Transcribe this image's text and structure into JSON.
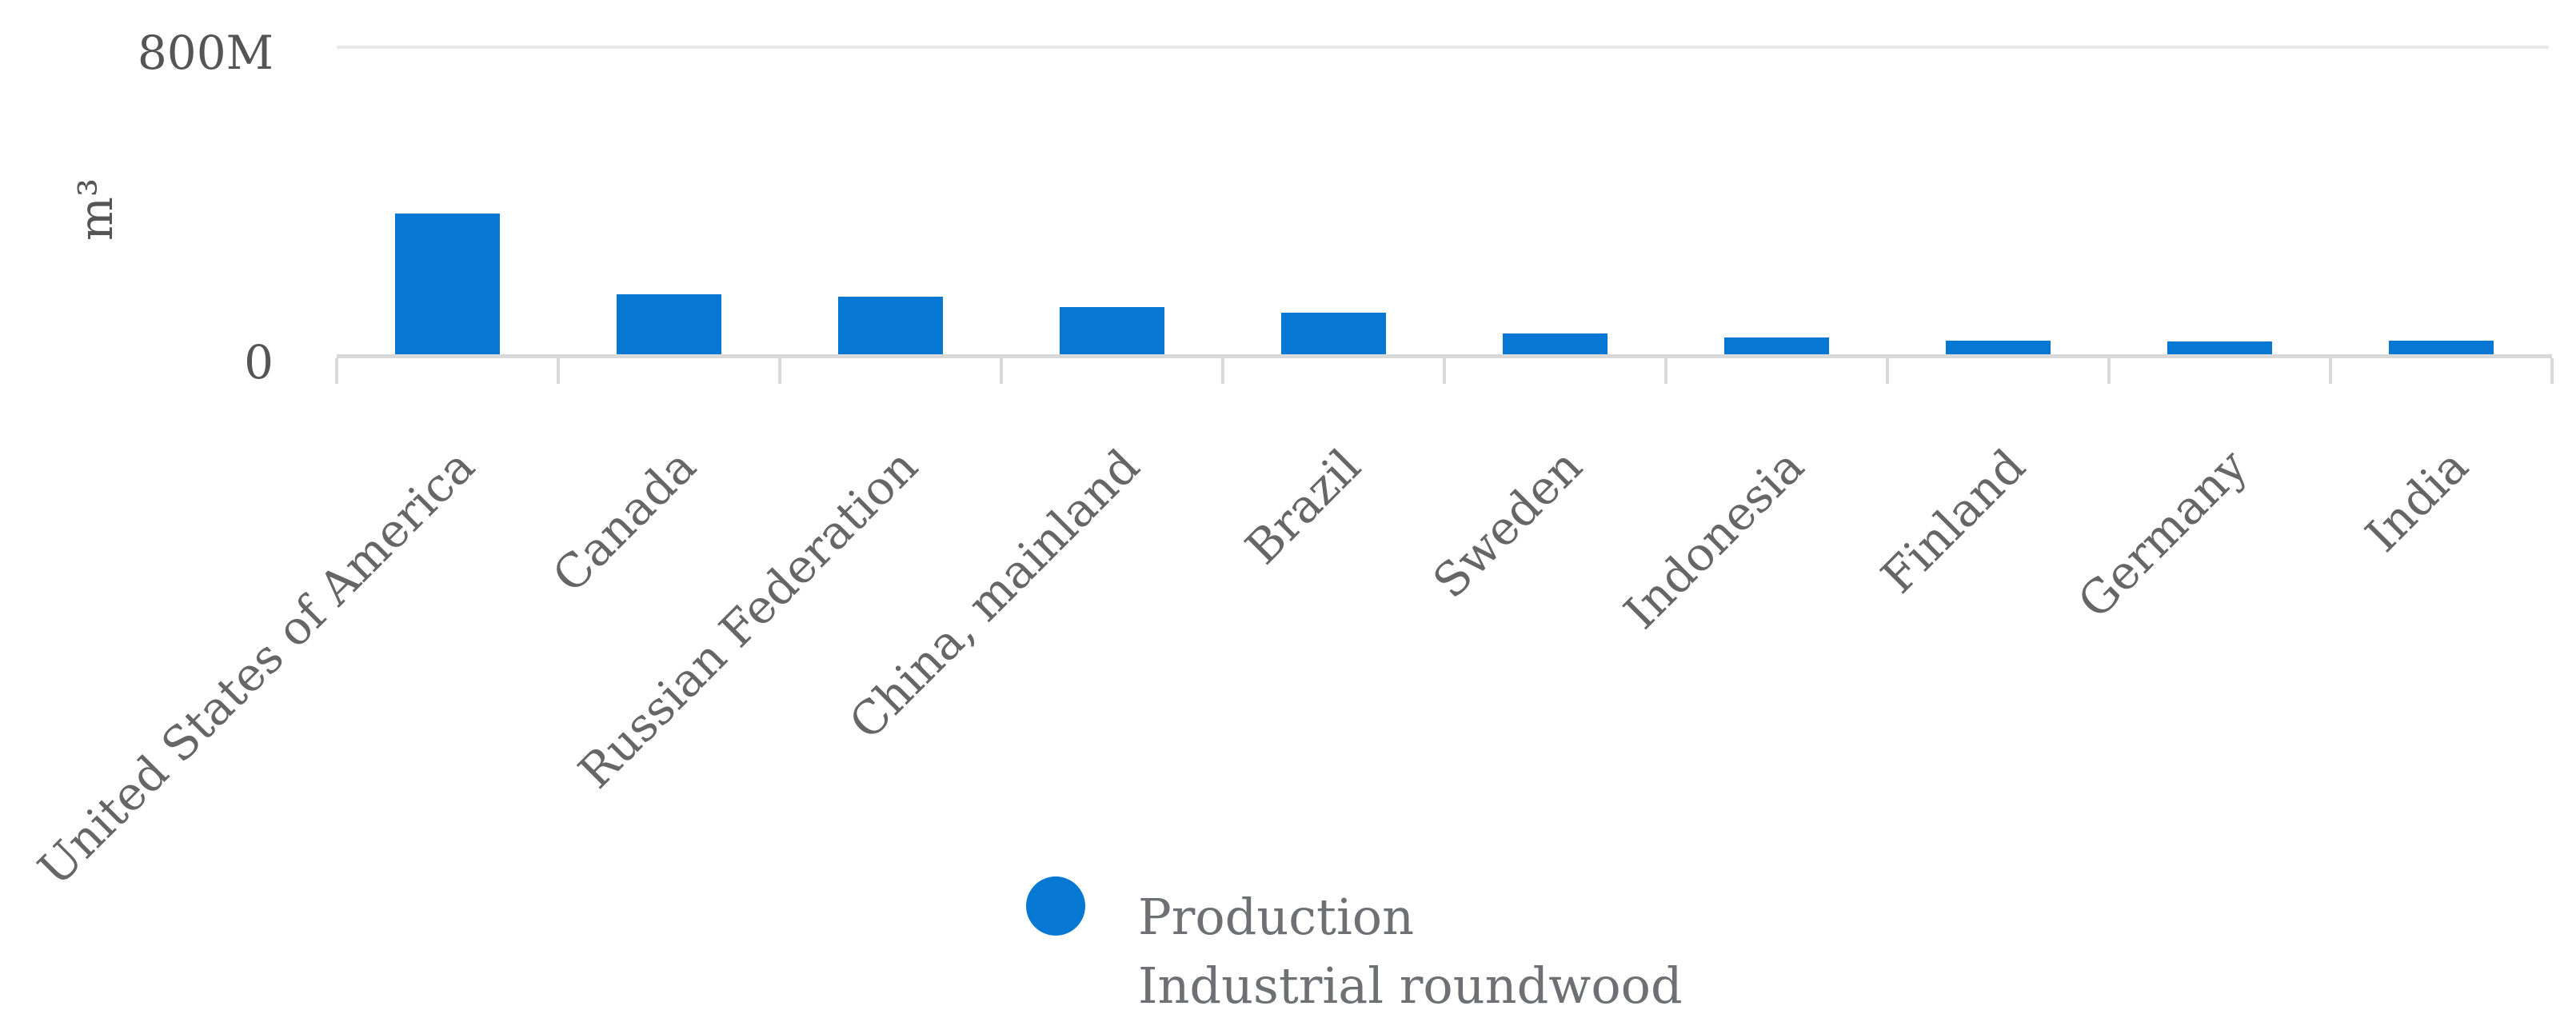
{
  "chart_data": {
    "type": "bar",
    "title": "",
    "ylabel": "m³",
    "yticks": [
      "800M",
      "0"
    ],
    "ylim": [
      0,
      800
    ],
    "value_unit": "million m³",
    "categories": [
      "United States of America",
      "Canada",
      "Russian Federation",
      "China, mainland",
      "Brazil",
      "Sweden",
      "Indonesia",
      "Finland",
      "Germany",
      "India"
    ],
    "series": [
      {
        "name": "Production - Industrial roundwood",
        "color": "#0677d2",
        "values": [
          368,
          159,
          153,
          126,
          112,
          58,
          48,
          39,
          38,
          39
        ]
      }
    ],
    "legend": {
      "position": "bottom-center",
      "marker": "circle",
      "marker_color": "#0677d2",
      "lines": [
        "Production",
        "Industrial roundwood"
      ]
    },
    "grid": {
      "horizontal_lines_at": [
        0,
        800
      ],
      "vertical_gridlines": false
    },
    "x_tick_label_rotation_deg": 45
  },
  "colors": {
    "bar": "#0677d2",
    "axis_line": "#d9d9d9",
    "gridline": "#e8e8e8",
    "tick_label": "#555555",
    "unit_label": "#555555",
    "category_label": "#666666",
    "legend_text": "#6e7073",
    "background": "#ffffff"
  }
}
